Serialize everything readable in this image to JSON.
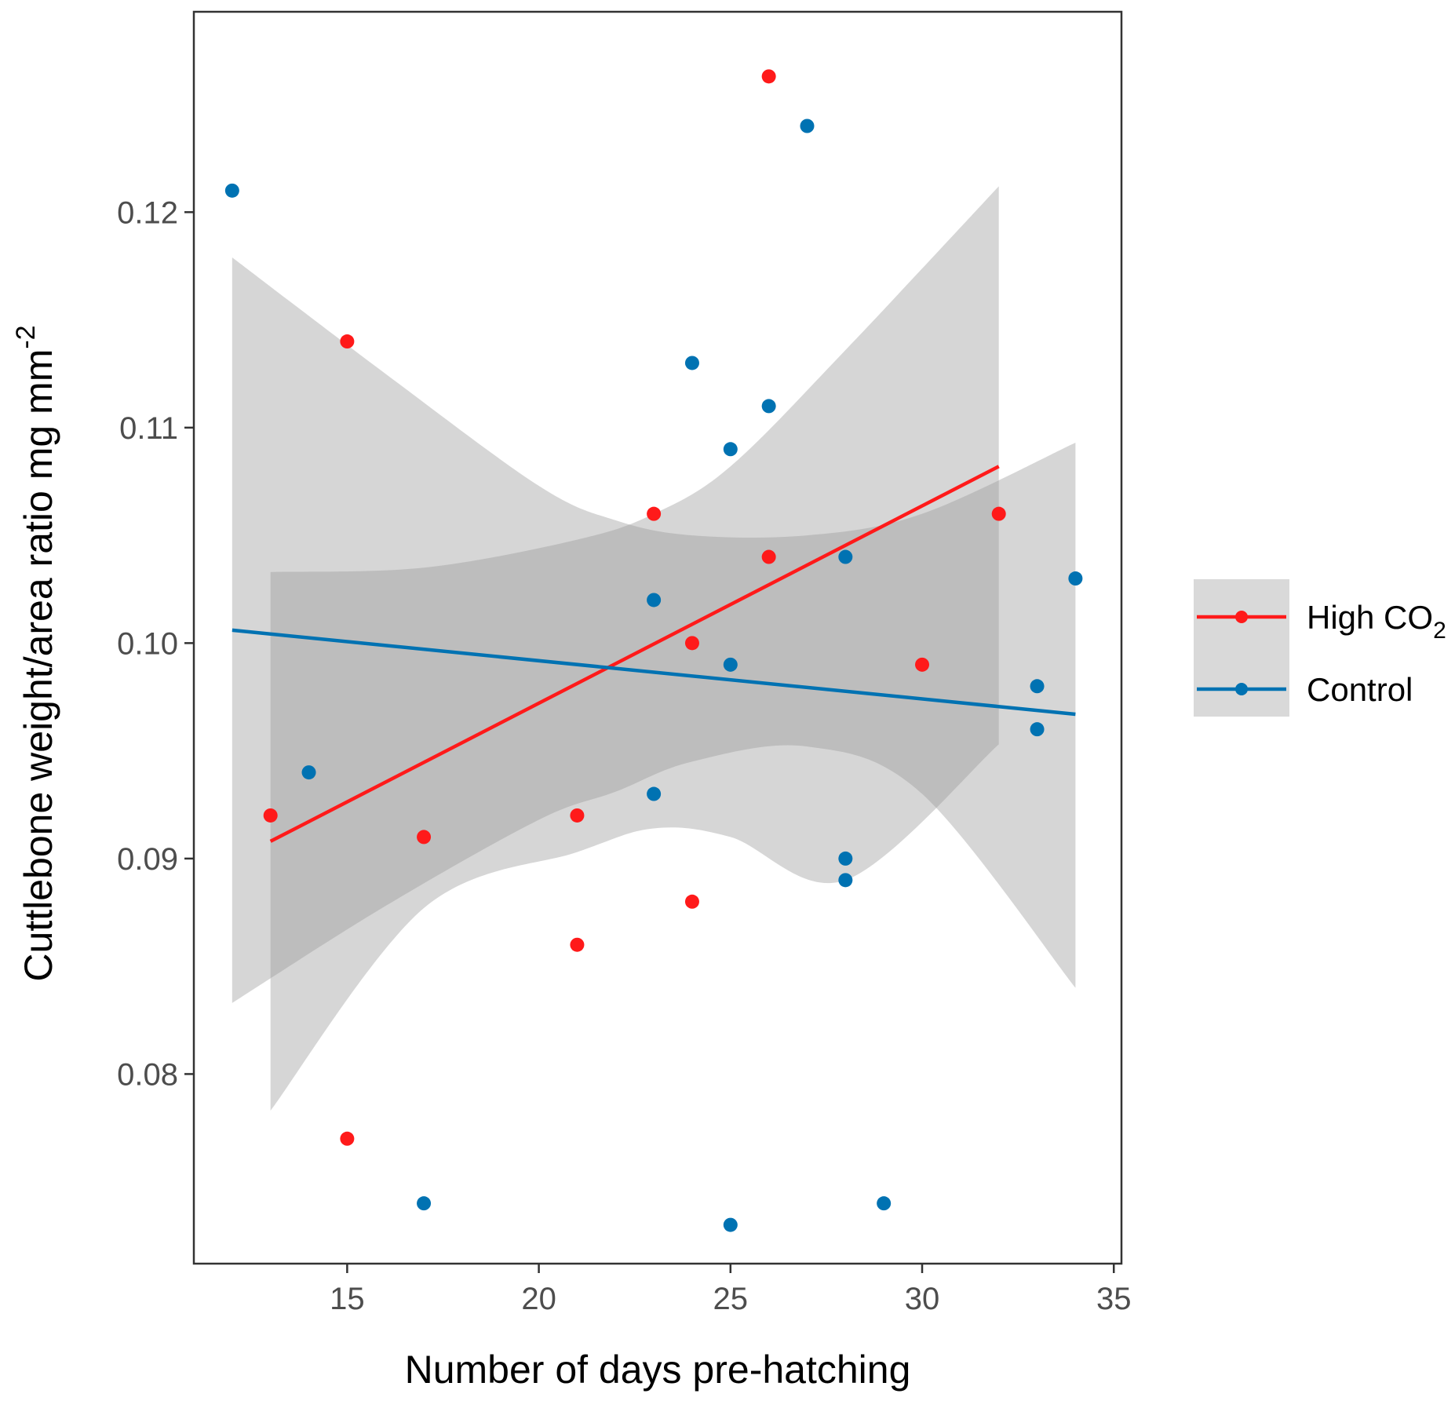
{
  "chart_data": {
    "type": "scatter",
    "title": "",
    "xlabel": "Number of days pre-hatching",
    "ylabel": "Cuttlebone weight/area ratio mg mm",
    "ylabel_superscript": "-2",
    "xlim": [
      11,
      35.2
    ],
    "ylim": [
      0.0712,
      0.1293
    ],
    "x_ticks": [
      15,
      20,
      25,
      30,
      35
    ],
    "y_ticks": [
      0.08,
      0.09,
      0.1,
      0.11,
      0.12
    ],
    "x_tick_labels": [
      "15",
      "20",
      "25",
      "30",
      "35"
    ],
    "y_tick_labels": [
      "0.08",
      "0.09",
      "0.10",
      "0.11",
      "0.12"
    ],
    "grid": false,
    "legend_position": "right",
    "series": [
      {
        "name": "High CO2",
        "label_main": "High CO",
        "label_sub": "2",
        "color": "#ff1a1a",
        "points": [
          [
            13,
            0.092
          ],
          [
            15,
            0.114
          ],
          [
            15,
            0.077
          ],
          [
            17,
            0.091
          ],
          [
            21,
            0.092
          ],
          [
            21,
            0.086
          ],
          [
            23,
            0.106
          ],
          [
            24,
            0.1
          ],
          [
            24,
            0.088
          ],
          [
            26,
            0.104
          ],
          [
            26,
            0.1263
          ],
          [
            30,
            0.099
          ],
          [
            32,
            0.106
          ]
        ],
        "fit_line": [
          [
            13,
            0.0908
          ],
          [
            32,
            0.1082
          ]
        ],
        "ci_x": [
          13,
          17,
          21,
          23,
          25,
          28,
          32
        ],
        "ci_lower": [
          0.0783,
          0.0877,
          0.0903,
          0.0914,
          0.091,
          0.089,
          0.0953
        ],
        "ci_upper": [
          0.1033,
          0.1035,
          0.1048,
          0.106,
          0.1082,
          0.1136,
          0.1212
        ]
      },
      {
        "name": "Control",
        "label_main": "Control",
        "label_sub": "",
        "color": "#0072b2",
        "points": [
          [
            12,
            0.121
          ],
          [
            14,
            0.094
          ],
          [
            17,
            0.074
          ],
          [
            23,
            0.102
          ],
          [
            23,
            0.093
          ],
          [
            24,
            0.113
          ],
          [
            25,
            0.109
          ],
          [
            25,
            0.099
          ],
          [
            25,
            0.073
          ],
          [
            26,
            0.111
          ],
          [
            27,
            0.124
          ],
          [
            28,
            0.104
          ],
          [
            28,
            0.09
          ],
          [
            28,
            0.089
          ],
          [
            29,
            0.074
          ],
          [
            33,
            0.098
          ],
          [
            33,
            0.096
          ],
          [
            34,
            0.103
          ]
        ],
        "fit_line": [
          [
            12,
            0.1006
          ],
          [
            34,
            0.0967
          ]
        ],
        "ci_x": [
          12,
          16,
          20,
          22,
          24,
          27,
          30,
          34
        ],
        "ci_lower": [
          0.0833,
          0.0878,
          0.0918,
          0.0931,
          0.0945,
          0.0952,
          0.093,
          0.084
        ],
        "ci_upper": [
          0.1179,
          0.1125,
          0.1073,
          0.1057,
          0.105,
          0.105,
          0.106,
          0.1093
        ]
      }
    ]
  }
}
